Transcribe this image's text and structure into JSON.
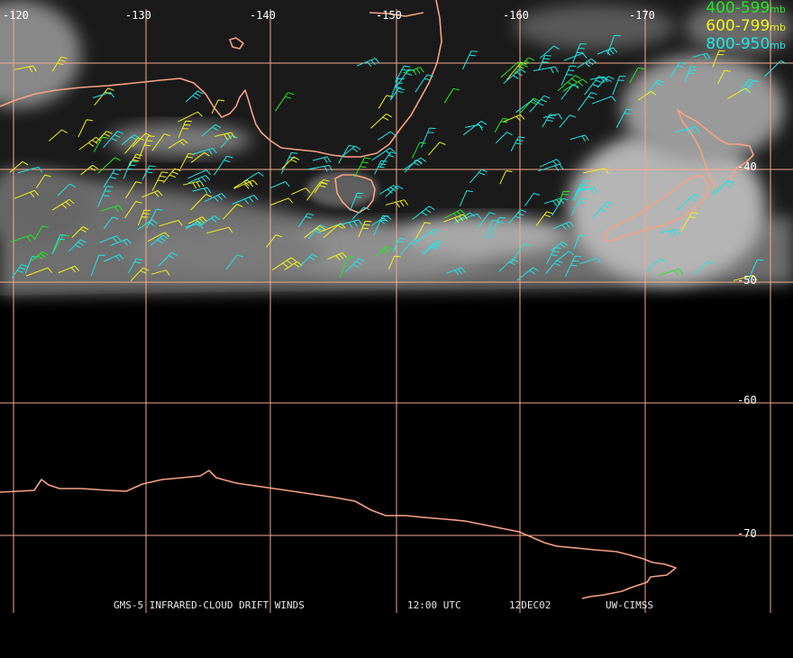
{
  "map": {
    "longitude_labels": [
      "-120",
      "-130",
      "-140",
      "-150",
      "-160",
      "-170"
    ],
    "latitude_labels": [
      "-40",
      "-50",
      "-60",
      "-70"
    ],
    "colors": {
      "grid": "#f4a98a",
      "coastline": "#f7a283",
      "background": "#000000",
      "clouds": "#cfcfcf"
    },
    "features": [
      "coastline-australia",
      "coastline-tasmania",
      "coastline-new-zealand",
      "coastline-antarctica",
      "wind-barbs"
    ]
  },
  "legend": [
    {
      "range": "400-599",
      "unit": "mb",
      "color": "#22e822"
    },
    {
      "range": "600-799",
      "unit": "mb",
      "color": "#f2f21a"
    },
    {
      "range": "800-950",
      "unit": "mb",
      "color": "#1ee6e6"
    }
  ],
  "caption": {
    "product": "GMS-5 INFRARED-CLOUD DRIFT WINDS",
    "time": "12:00 UTC",
    "date": "12DEC02",
    "source": "UW-CIMSS"
  }
}
